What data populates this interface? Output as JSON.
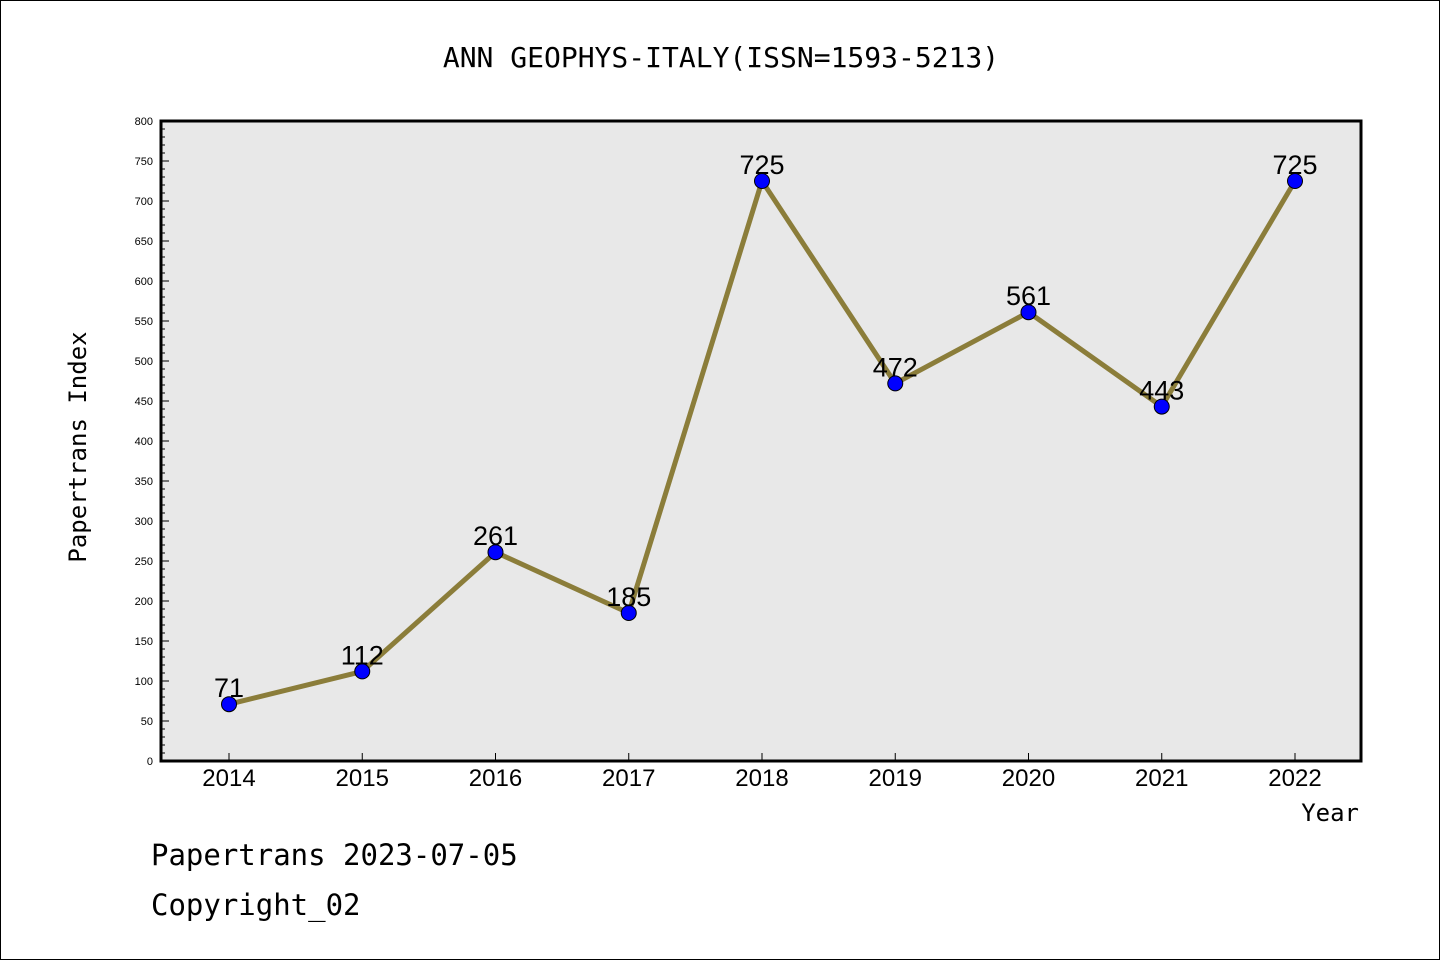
{
  "chart_data": {
    "type": "line",
    "title": "ANN GEOPHYS-ITALY(ISSN=1593-5213)",
    "xlabel": "Year",
    "ylabel": "Papertrans Index",
    "categories": [
      "2014",
      "2015",
      "2016",
      "2017",
      "2018",
      "2019",
      "2020",
      "2021",
      "2022"
    ],
    "values": [
      71,
      112,
      261,
      185,
      725,
      472,
      561,
      443,
      725
    ],
    "data_labels": [
      "71",
      "112",
      "261",
      "185",
      "725",
      "472",
      "561",
      "443",
      "725"
    ],
    "ylim": [
      0,
      800
    ],
    "yticks": [
      "0",
      "50",
      "100",
      "150",
      "200",
      "250",
      "300",
      "350",
      "400",
      "450",
      "500",
      "550",
      "600",
      "650",
      "700",
      "750",
      "800"
    ],
    "grid": false,
    "legend": "none",
    "colors": {
      "line": "#8b7d3a",
      "marker": "#0000ff",
      "plot_background": "#e8e8e8"
    }
  },
  "footer": {
    "line1": "Papertrans 2023-07-05",
    "line2": "Copyright_02"
  }
}
